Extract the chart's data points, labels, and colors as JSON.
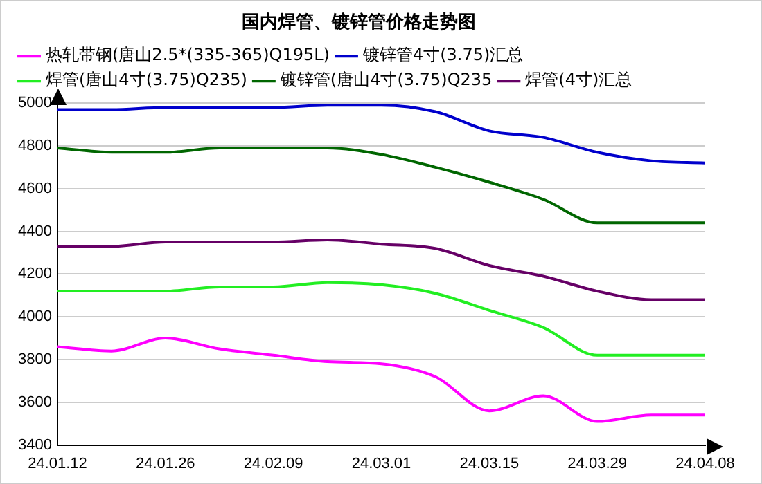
{
  "chart_data": {
    "type": "line",
    "title": "国内焊管、镀锌管价格走势图",
    "categories": [
      "24.01.12",
      null,
      "24.01.26",
      null,
      "24.02.09",
      null,
      "24.03.01",
      null,
      "24.03.15",
      null,
      "24.03.29",
      null,
      "24.04.08"
    ],
    "series": [
      {
        "name": "热轧带钢(唐山2.5*(335-365)Q195L)",
        "color": "#ff00ff",
        "values": [
          3860,
          3840,
          3900,
          3850,
          3820,
          3790,
          3780,
          3720,
          3560,
          3630,
          3510,
          3540,
          3540
        ]
      },
      {
        "name": "镀锌管4寸(3.75)汇总",
        "color": "#0000cc",
        "values": [
          4970,
          4970,
          4980,
          4980,
          4980,
          4990,
          4990,
          4960,
          4870,
          4840,
          4770,
          4730,
          4720
        ]
      },
      {
        "name": "焊管(唐山4寸(3.75)Q235)",
        "color": "#22ee22",
        "values": [
          4120,
          4120,
          4120,
          4140,
          4140,
          4160,
          4150,
          4110,
          4030,
          3950,
          3820,
          3820,
          3820
        ]
      },
      {
        "name": "镀锌管(唐山4寸(3.75)Q235",
        "color": "#006600",
        "values": [
          4790,
          4770,
          4770,
          4790,
          4790,
          4790,
          4760,
          4700,
          4630,
          4550,
          4440,
          4440,
          4440
        ]
      },
      {
        "name": "焊管(4寸)汇总",
        "color": "#660066",
        "values": [
          4330,
          4330,
          4350,
          4350,
          4350,
          4360,
          4340,
          4320,
          4240,
          4190,
          4120,
          4080,
          4080
        ]
      }
    ],
    "ylim": [
      3400,
      5000
    ],
    "yticks": [
      3400,
      3600,
      3800,
      4000,
      4200,
      4400,
      4600,
      4800,
      5000
    ],
    "grid": "y",
    "legend": "top",
    "marker": "none",
    "line_style": "solid"
  }
}
